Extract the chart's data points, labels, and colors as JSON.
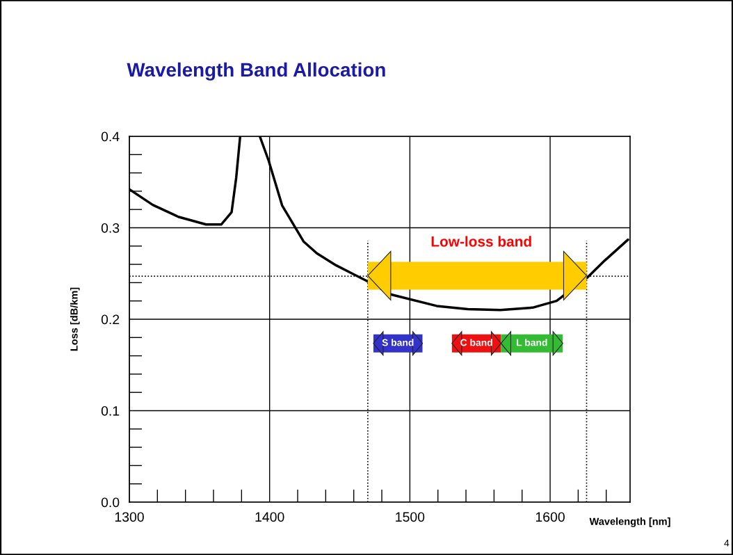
{
  "chart_data": {
    "type": "line",
    "title": "Wavelength Band Allocation",
    "xlabel": "Wavelength [nm]",
    "ylabel": "Loss [dB/km]",
    "x": [
      1300,
      1316.7,
      1334.9,
      1354.7,
      1365.5,
      1372.9,
      1376.2,
      1379,
      1386,
      1393,
      1399.4,
      1408.9,
      1424.2,
      1433.7,
      1447.3,
      1469.6,
      1486.7,
      1519.1,
      1541.3,
      1564.5,
      1587.5,
      1604.6,
      1626.8,
      1638.8,
      1655.5
    ],
    "series": [
      {
        "color": "#000000",
        "values": [
          0.342,
          0.325,
          0.312,
          0.3036,
          0.3036,
          0.317,
          0.355,
          0.4,
          null,
          0.4,
          0.373,
          0.3245,
          0.285,
          0.272,
          0.259,
          0.2416,
          0.227,
          0.2145,
          0.211,
          0.21,
          0.2127,
          0.22,
          0.246,
          0.264,
          0.287
        ]
      }
    ],
    "xlim": [
      1300,
      1657
    ],
    "ylim": [
      0,
      0.4
    ],
    "xticks": [
      1300,
      1400,
      1500,
      1600
    ],
    "yticks": [
      {
        "value": 0,
        "label": "0.0"
      },
      0.1,
      0.2,
      0.3,
      0.4
    ],
    "grid": true,
    "marker": "none",
    "line_style": "solid",
    "legend": false,
    "ref_lines": [
      {
        "axis": "y",
        "value": 0.247,
        "line_style": "dotted",
        "color": "#000000"
      },
      {
        "axis": "x",
        "value": 1470,
        "line_style": "dotted",
        "color": "#000000"
      },
      {
        "axis": "x",
        "value": 1626,
        "line_style": "dotted",
        "color": "#000000"
      }
    ],
    "bands": [
      {
        "axis": "x",
        "from": 1470,
        "to": 1626,
        "label": "Low-loss band",
        "color": "#ffcc00"
      },
      {
        "axis": "x",
        "from": 1474,
        "to": 1509,
        "label": "S band",
        "color": "#3333cc"
      },
      {
        "axis": "x",
        "from": 1530,
        "to": 1565,
        "label": "C band",
        "color": "#ee1111"
      },
      {
        "axis": "x",
        "from": 1565,
        "to": 1609,
        "label": "L band",
        "color": "#33bb33"
      }
    ],
    "annotations": [
      "4"
    ]
  }
}
